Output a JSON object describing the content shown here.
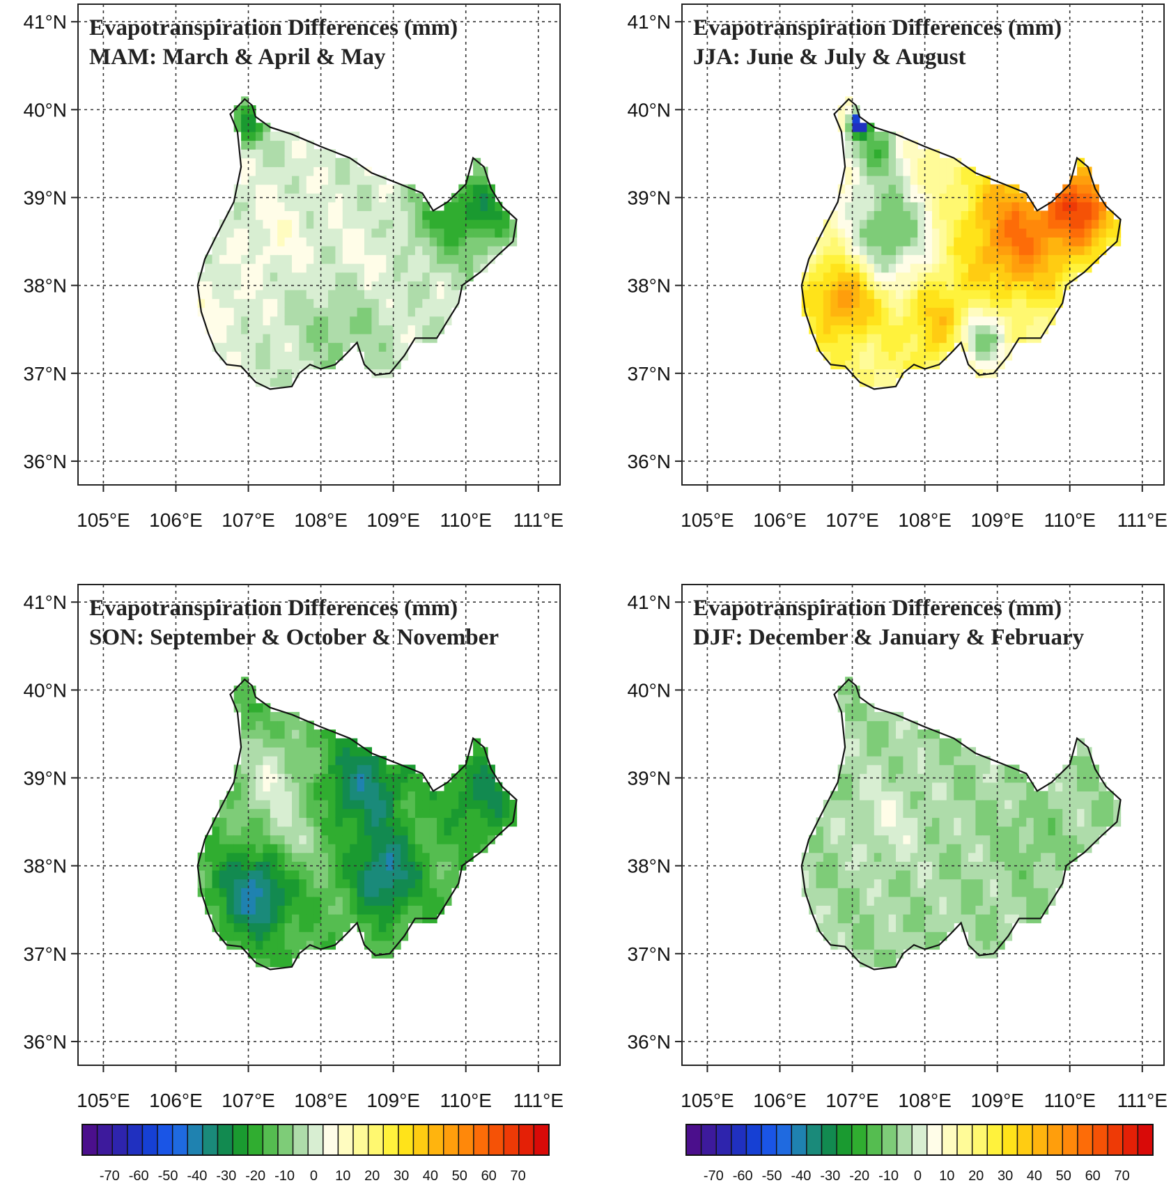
{
  "figure": {
    "panels": [
      {
        "id": "mam",
        "title_line1": "Evapotranspiration Differences (mm)",
        "title_line2": "MAM: March & April & May",
        "pattern": {
          "base": 2,
          "blobs": [
            {
              "lon": 107.0,
              "lat": 39.85,
              "v": -22,
              "r": 0.25
            },
            {
              "lon": 109.8,
              "lat": 38.85,
              "v": -18,
              "r": 0.55
            },
            {
              "lon": 110.4,
              "lat": 38.9,
              "v": -14,
              "r": 0.4
            },
            {
              "lon": 107.4,
              "lat": 38.6,
              "v": 8,
              "r": 0.5
            },
            {
              "lon": 108.6,
              "lat": 38.3,
              "v": 6,
              "r": 0.5
            },
            {
              "lon": 106.6,
              "lat": 37.8,
              "v": 7,
              "r": 0.4
            },
            {
              "lon": 108.3,
              "lat": 37.5,
              "v": -6,
              "r": 0.6
            }
          ]
        }
      },
      {
        "id": "jja",
        "title_line1": "Evapotranspiration Differences (mm)",
        "title_line2": "JJA: June & July & August",
        "pattern": {
          "base": 20,
          "blobs": [
            {
              "lon": 109.3,
              "lat": 38.6,
              "v": 55,
              "r": 0.7
            },
            {
              "lon": 110.2,
              "lat": 38.9,
              "v": 60,
              "r": 0.45
            },
            {
              "lon": 106.9,
              "lat": 37.85,
              "v": 50,
              "r": 0.45
            },
            {
              "lon": 108.2,
              "lat": 37.6,
              "v": 38,
              "r": 0.5
            },
            {
              "lon": 107.5,
              "lat": 38.6,
              "v": -12,
              "r": 0.6
            },
            {
              "lon": 107.3,
              "lat": 39.6,
              "v": -10,
              "r": 0.45
            },
            {
              "lon": 107.1,
              "lat": 39.85,
              "v": -55,
              "r": 0.12
            },
            {
              "lon": 108.8,
              "lat": 37.4,
              "v": -10,
              "r": 0.35
            }
          ]
        }
      },
      {
        "id": "son",
        "title_line1": "Evapotranspiration Differences (mm)",
        "title_line2": "SON: September & October & November",
        "pattern": {
          "base": -12,
          "blobs": [
            {
              "lon": 107.1,
              "lat": 37.7,
              "v": -38,
              "r": 0.5
            },
            {
              "lon": 108.9,
              "lat": 37.9,
              "v": -36,
              "r": 0.45
            },
            {
              "lon": 108.6,
              "lat": 38.9,
              "v": -32,
              "r": 0.55
            },
            {
              "lon": 110.2,
              "lat": 38.8,
              "v": -26,
              "r": 0.5
            },
            {
              "lon": 107.3,
              "lat": 39.0,
              "v": 2,
              "r": 0.5
            },
            {
              "lon": 107.6,
              "lat": 38.3,
              "v": -2,
              "r": 0.45
            }
          ]
        }
      },
      {
        "id": "djf",
        "title_line1": "Evapotranspiration Differences (mm)",
        "title_line2": "DJF: December & January & February",
        "pattern": {
          "base": -4,
          "blobs": [
            {
              "lon": 107.5,
              "lat": 38.5,
              "v": 3,
              "r": 0.5
            },
            {
              "lon": 109.5,
              "lat": 38.3,
              "v": -8,
              "r": 0.4
            }
          ]
        }
      }
    ],
    "x_tick_labels": [
      "105°E",
      "106°E",
      "107°E",
      "108°E",
      "109°E",
      "110°E",
      "111°E"
    ],
    "x_tick_values": [
      105,
      106,
      107,
      108,
      109,
      110,
      111
    ],
    "y_tick_labels": [
      "36°N",
      "37°N",
      "38°N",
      "39°N",
      "40°N",
      "41°N"
    ],
    "y_tick_values": [
      36,
      37,
      38,
      39,
      40,
      41
    ],
    "colorbar": {
      "labels": [
        "-70",
        "-60",
        "-50",
        "-40",
        "-30",
        "-20",
        "-10",
        "0",
        "10",
        "20",
        "30",
        "40",
        "50",
        "60",
        "70"
      ],
      "bins": [
        -75,
        -70,
        -65,
        -60,
        -55,
        -50,
        -45,
        -40,
        -35,
        -30,
        -25,
        -20,
        -15,
        -10,
        -5,
        0,
        5,
        10,
        15,
        20,
        25,
        30,
        35,
        40,
        45,
        50,
        55,
        60,
        65,
        70,
        75
      ],
      "colors": [
        "#4b0f8c",
        "#3d1a9c",
        "#2e24ad",
        "#2030c0",
        "#1640d4",
        "#1a55e6",
        "#1f6ae0",
        "#1f82b0",
        "#1a8a7a",
        "#128a50",
        "#1a9a30",
        "#30ad30",
        "#55bd50",
        "#7ecc78",
        "#aedcaa",
        "#d8eed2",
        "#fffde8",
        "#fffcc0",
        "#fffb98",
        "#fff870",
        "#fff23c",
        "#ffe31a",
        "#ffcc12",
        "#ffb40e",
        "#ff9e0c",
        "#ff880a",
        "#fd6c08",
        "#f55206",
        "#ee3a06",
        "#e42006",
        "#d90a08"
      ]
    },
    "region_outline": [
      [
        106.95,
        40.12
      ],
      [
        107.05,
        40.05
      ],
      [
        107.1,
        39.92
      ],
      [
        107.3,
        39.8
      ],
      [
        107.6,
        39.72
      ],
      [
        108.0,
        39.58
      ],
      [
        108.4,
        39.45
      ],
      [
        108.7,
        39.28
      ],
      [
        109.1,
        39.15
      ],
      [
        109.4,
        39.05
      ],
      [
        109.55,
        38.85
      ],
      [
        109.75,
        38.95
      ],
      [
        110.0,
        39.15
      ],
      [
        110.1,
        39.45
      ],
      [
        110.25,
        39.35
      ],
      [
        110.35,
        39.1
      ],
      [
        110.5,
        38.9
      ],
      [
        110.7,
        38.75
      ],
      [
        110.65,
        38.5
      ],
      [
        110.45,
        38.35
      ],
      [
        110.2,
        38.15
      ],
      [
        109.95,
        38.0
      ],
      [
        109.9,
        37.8
      ],
      [
        109.75,
        37.6
      ],
      [
        109.6,
        37.4
      ],
      [
        109.3,
        37.4
      ],
      [
        109.15,
        37.2
      ],
      [
        108.95,
        37.0
      ],
      [
        108.75,
        36.98
      ],
      [
        108.6,
        37.1
      ],
      [
        108.5,
        37.35
      ],
      [
        108.35,
        37.22
      ],
      [
        108.2,
        37.1
      ],
      [
        108.0,
        37.05
      ],
      [
        107.85,
        37.1
      ],
      [
        107.7,
        37.0
      ],
      [
        107.6,
        36.85
      ],
      [
        107.3,
        36.82
      ],
      [
        107.1,
        36.9
      ],
      [
        106.9,
        37.08
      ],
      [
        106.7,
        37.1
      ],
      [
        106.55,
        37.25
      ],
      [
        106.45,
        37.45
      ],
      [
        106.35,
        37.7
      ],
      [
        106.3,
        38.0
      ],
      [
        106.4,
        38.3
      ],
      [
        106.55,
        38.55
      ],
      [
        106.8,
        38.95
      ],
      [
        106.9,
        39.35
      ],
      [
        106.85,
        39.75
      ],
      [
        106.75,
        39.95
      ]
    ]
  }
}
